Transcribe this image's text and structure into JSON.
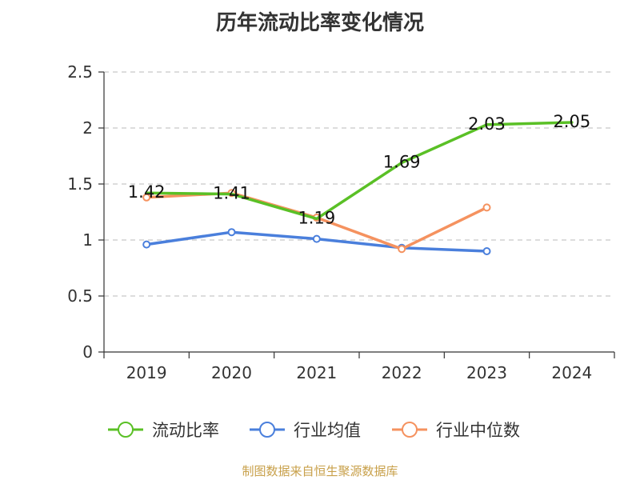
{
  "chart_data": {
    "type": "line",
    "title": "历年流动比率变化情况",
    "categories": [
      "2019",
      "2020",
      "2021",
      "2022",
      "2023",
      "2024"
    ],
    "ylim": [
      0,
      2.5
    ],
    "yticks": [
      "0",
      "0.5",
      "1",
      "1.5",
      "2",
      "2.5"
    ],
    "grid": true,
    "legend_position": "bottom",
    "series": [
      {
        "name": "流动比率",
        "color": "#5ac026",
        "values": [
          1.42,
          1.41,
          1.19,
          1.69,
          2.03,
          2.05
        ],
        "labels": [
          "1.42",
          "1.41",
          "1.19",
          "1.69",
          "2.03",
          "2.05"
        ],
        "markers": false
      },
      {
        "name": "行业均值",
        "color": "#4a7fdc",
        "values": [
          0.96,
          1.07,
          1.01,
          0.93,
          0.9,
          null
        ],
        "markers": true
      },
      {
        "name": "行业中位数",
        "color": "#f5925f",
        "values": [
          1.38,
          1.42,
          1.2,
          0.92,
          1.29,
          null
        ],
        "markers": true
      }
    ]
  },
  "source": "制图数据来自恒生聚源数据库"
}
